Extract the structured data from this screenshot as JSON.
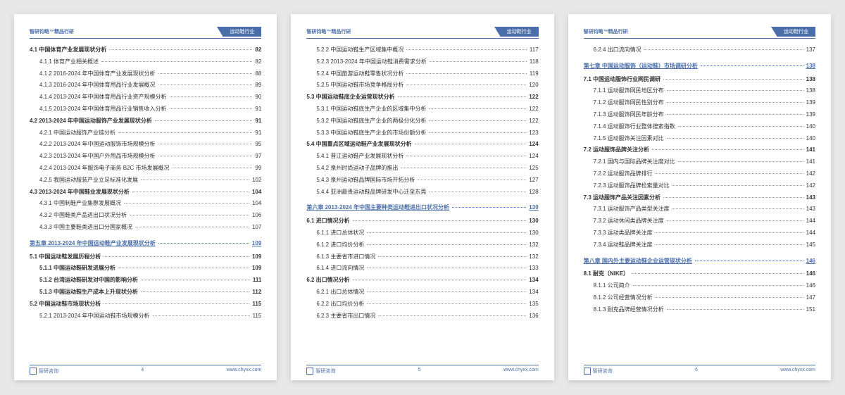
{
  "header": {
    "left": "智研钧略™精品行研",
    "right": "运动鞋行业"
  },
  "footer": {
    "brand": "智研咨询",
    "url": "www.chyxx.com"
  },
  "pages": [
    {
      "num": "4",
      "lines": [
        {
          "lvl": "level1",
          "t": "4.1 中国体育产业发展现状分析",
          "p": "82"
        },
        {
          "lvl": "level2",
          "t": "4.1.1 体育产业相关概述",
          "p": "82"
        },
        {
          "lvl": "level2",
          "t": "4.1.2 2016-2024 年中国体育产业发展现状分析",
          "p": "88"
        },
        {
          "lvl": "level2",
          "t": "4.1.3 2016-2024 年中国体育用品行业发展概况",
          "p": "89"
        },
        {
          "lvl": "level2",
          "t": "4.1.4 2013-2024 年中国体育用品行业资产规模分析",
          "p": "90"
        },
        {
          "lvl": "level2",
          "t": "4.1.5 2013-2024 年中国体育用品行业销售收入分析",
          "p": "91"
        },
        {
          "lvl": "level1",
          "t": "4.2 2013-2024 年中国运动服饰产业发展现状分析",
          "p": "91"
        },
        {
          "lvl": "level2",
          "t": "4.2.1 中国运动服饰产业链分析",
          "p": "91"
        },
        {
          "lvl": "level2",
          "t": "4.2.2 2013-2024 年中国运动服饰市场规模分析",
          "p": "95"
        },
        {
          "lvl": "level2",
          "t": "4.2.3 2013-2024 年中国户外用品市场规模分析",
          "p": "97"
        },
        {
          "lvl": "level2",
          "t": "4.2.4 2013-2024 年服饰电子商务 B2C 市场发展概况",
          "p": "99"
        },
        {
          "lvl": "level2",
          "t": "4.2.5 我国运动服装产业立足标准化发展",
          "p": "102"
        },
        {
          "lvl": "level1",
          "t": "4.3 2013-2024 年中国鞋业发展现状分析",
          "p": "104"
        },
        {
          "lvl": "level2",
          "t": "4.3.1 中国制鞋产业集群发展概况",
          "p": "104"
        },
        {
          "lvl": "level2",
          "t": "4.3.2 中国鞋类产品进出口状况分析",
          "p": "106"
        },
        {
          "lvl": "level2",
          "t": "4.3.3 中国主要鞋类进出口分国家概况",
          "p": "107"
        },
        {
          "lvl": "chapter",
          "t": "第五章 2013-2024 年中国运动鞋产业发展现状分析",
          "p": "109"
        },
        {
          "lvl": "level1",
          "t": "5.1 中国运动鞋发展历程分析",
          "p": "109"
        },
        {
          "lvl": "level2b",
          "t": "5.1.1 中国运动鞋研发进展分析",
          "p": "109"
        },
        {
          "lvl": "level2b",
          "t": "5.1.2 台湾运动鞋研发对中国的影响分析",
          "p": "111"
        },
        {
          "lvl": "level2b",
          "t": "5.1.3 中国运动鞋生产成本上升现状分析",
          "p": "112"
        },
        {
          "lvl": "level1",
          "t": "5.2 中国运动鞋市场现状分析",
          "p": "115"
        },
        {
          "lvl": "level2",
          "t": "5.2.1 2013-2024 年中国运动鞋市场规模分析",
          "p": "115"
        }
      ]
    },
    {
      "num": "5",
      "lines": [
        {
          "lvl": "level2",
          "t": "5.2.2 中国运动鞋生产区域集中概况",
          "p": "117"
        },
        {
          "lvl": "level2",
          "t": "5.2.3 2013-2024 年中国运动鞋消费需求分析",
          "p": "118"
        },
        {
          "lvl": "level2",
          "t": "5.2.4 中国旅游运动鞋零售状况分析",
          "p": "119"
        },
        {
          "lvl": "level2",
          "t": "5.2.5 中国运动鞋市场竞争格局分析",
          "p": "120"
        },
        {
          "lvl": "level1",
          "t": "5.3 中国运动鞋底企业运营现状分析",
          "p": "122"
        },
        {
          "lvl": "level2",
          "t": "5.3.1 中国运动鞋底生产企业的区域集中分析",
          "p": "122"
        },
        {
          "lvl": "level2",
          "t": "5.3.2 中国运动鞋底生产企业的两极分化分析",
          "p": "122"
        },
        {
          "lvl": "level2",
          "t": "5.3.3 中国运动鞋底生产企业的市场份额分析",
          "p": "123"
        },
        {
          "lvl": "level1",
          "t": "5.4 中国重点区域运动鞋产业发展现状分析",
          "p": "124"
        },
        {
          "lvl": "level2",
          "t": "5.4.1 晋江运动鞋产业发展现状分析",
          "p": "124"
        },
        {
          "lvl": "level2",
          "t": "5.4.2 泉州时尚运动子品牌的推出",
          "p": "125"
        },
        {
          "lvl": "level2",
          "t": "5.4.3 泉州运动鞋品牌国际市场开拓分析",
          "p": "127"
        },
        {
          "lvl": "level2",
          "t": "5.4.4 亚洲最贵运动鞋品牌研发中心迁至东莞",
          "p": "128"
        },
        {
          "lvl": "chapter",
          "t": "第六章 2013-2024 年中国主要种类运动鞋进出口状况分析",
          "p": "130"
        },
        {
          "lvl": "level1",
          "t": "6.1 进口情况分析",
          "p": "130"
        },
        {
          "lvl": "level2",
          "t": "6.1.1 进口总体状况",
          "p": "130"
        },
        {
          "lvl": "level2",
          "t": "6.1.2 进口均价分析",
          "p": "132"
        },
        {
          "lvl": "level2",
          "t": "6.1.3 主要省市进口情况",
          "p": "132"
        },
        {
          "lvl": "level2",
          "t": "6.1.4 进口流向情况",
          "p": "133"
        },
        {
          "lvl": "level1",
          "t": "6.2 出口情况分析",
          "p": "134"
        },
        {
          "lvl": "level2",
          "t": "6.2.1 出口总体情况",
          "p": "134"
        },
        {
          "lvl": "level2",
          "t": "6.2.2 出口均价分析",
          "p": "135"
        },
        {
          "lvl": "level2",
          "t": "6.2.3 主要省市出口情况",
          "p": "136"
        }
      ]
    },
    {
      "num": "6",
      "lines": [
        {
          "lvl": "level2",
          "t": "6.2.4 出口流向情况",
          "p": "137"
        },
        {
          "lvl": "chapter",
          "t": "第七章 中国运动服饰（运动鞋）市场调研分析",
          "p": "138"
        },
        {
          "lvl": "level1",
          "t": "7.1 中国运动服饰行业网民调研",
          "p": "138"
        },
        {
          "lvl": "level2",
          "t": "7.1.1 运动服饰网民地区分布",
          "p": "138"
        },
        {
          "lvl": "level2",
          "t": "7.1.2 运动服饰网民性别分布",
          "p": "139"
        },
        {
          "lvl": "level2",
          "t": "7.1.3 运动服饰网民年龄分布",
          "p": "139"
        },
        {
          "lvl": "level2",
          "t": "7.1.4 运动服饰行业整体搜索指数",
          "p": "140"
        },
        {
          "lvl": "level2",
          "t": "7.1.5 运动服饰关注因素对比",
          "p": "140"
        },
        {
          "lvl": "level1",
          "t": "7.2 运动服饰品牌关注分析",
          "p": "141"
        },
        {
          "lvl": "level2",
          "t": "7.2.1 国内与国际品牌关注度对比",
          "p": "141"
        },
        {
          "lvl": "level2",
          "t": "7.2.2 运动服饰品牌排行",
          "p": "142"
        },
        {
          "lvl": "level2",
          "t": "7.2.3 运动服饰品牌检索量对比",
          "p": "142"
        },
        {
          "lvl": "level1",
          "t": "7.3 运动服饰产品关注因素分析",
          "p": "143"
        },
        {
          "lvl": "level2",
          "t": "7.3.1 运动服饰产品类型关注度",
          "p": "143"
        },
        {
          "lvl": "level2",
          "t": "7.3.2 运动休闲类品牌关注度",
          "p": "144"
        },
        {
          "lvl": "level2",
          "t": "7.3.3 运动类品牌关注度",
          "p": "144"
        },
        {
          "lvl": "level2",
          "t": "7.3.4 运动鞋品牌关注度",
          "p": "145"
        },
        {
          "lvl": "chapter",
          "t": "第八章 国内外主要运动鞋企业运营现状分析",
          "p": "146"
        },
        {
          "lvl": "level1",
          "t": "8.1 耐克（NIKE）",
          "p": "146"
        },
        {
          "lvl": "level2",
          "t": "8.1.1 公司简介",
          "p": "146"
        },
        {
          "lvl": "level2",
          "t": "8.1.2 公司经营情况分析",
          "p": "147"
        },
        {
          "lvl": "level2",
          "t": "8.1.3 耐克品牌经营情况分析",
          "p": "151"
        }
      ]
    }
  ]
}
